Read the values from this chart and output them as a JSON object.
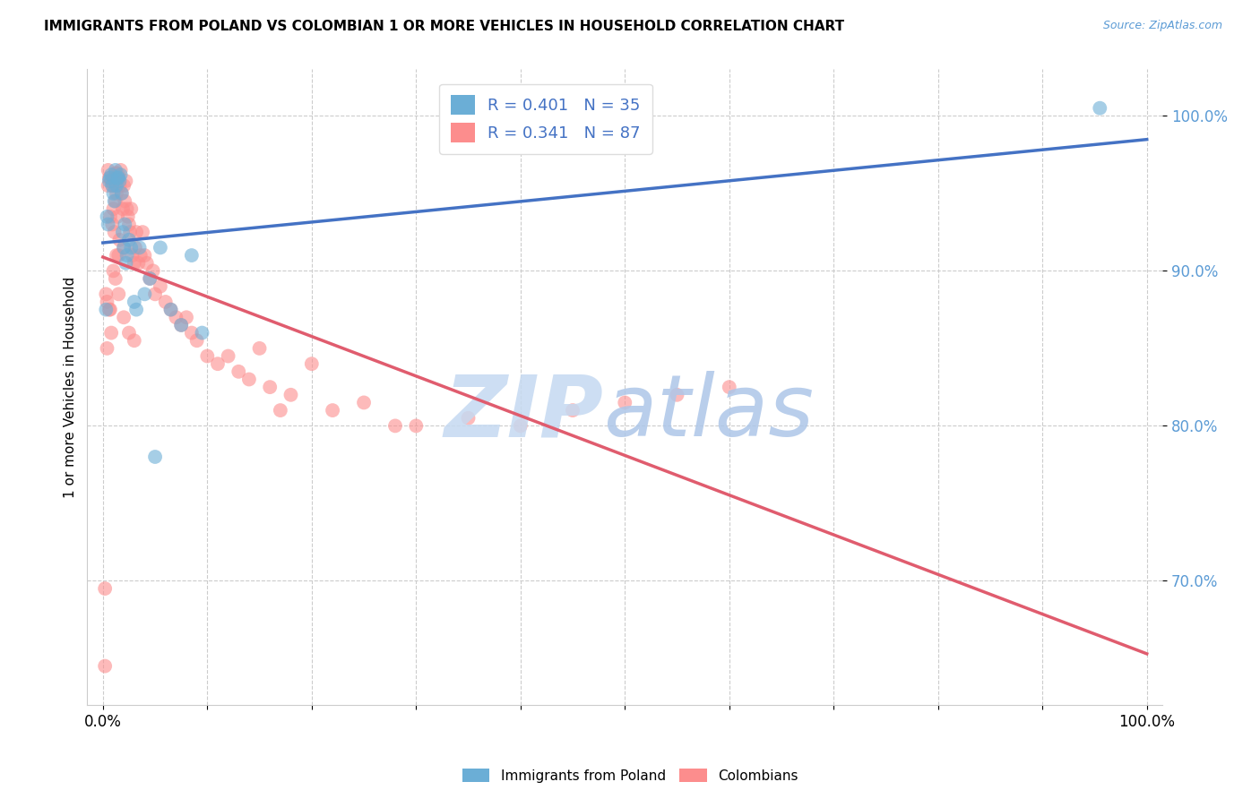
{
  "title": "IMMIGRANTS FROM POLAND VS COLOMBIAN 1 OR MORE VEHICLES IN HOUSEHOLD CORRELATION CHART",
  "source": "Source: ZipAtlas.com",
  "ylabel": "1 or more Vehicles in Household",
  "poland_R": 0.401,
  "poland_N": 35,
  "colombia_R": 0.341,
  "colombia_N": 87,
  "poland_color": "#6baed6",
  "colombia_color": "#fc8d8d",
  "poland_line_color": "#4472c4",
  "colombia_line_color": "#e05c6e",
  "legend_label_poland": "Immigrants from Poland",
  "legend_label_colombia": "Colombians",
  "poland_x": [
    0.3,
    0.4,
    0.5,
    0.6,
    0.7,
    0.8,
    0.9,
    1.0,
    1.1,
    1.2,
    1.3,
    1.4,
    1.5,
    1.6,
    1.7,
    1.8,
    1.9,
    2.0,
    2.1,
    2.2,
    2.3,
    2.5,
    2.7,
    3.0,
    3.2,
    3.5,
    4.0,
    4.5,
    5.0,
    5.5,
    6.5,
    7.5,
    8.5,
    9.5,
    95.5
  ],
  "poland_y": [
    87.5,
    93.5,
    93.0,
    95.8,
    96.0,
    96.2,
    95.5,
    95.0,
    94.5,
    96.5,
    95.5,
    96.0,
    96.0,
    95.8,
    96.2,
    95.0,
    92.5,
    91.5,
    93.0,
    90.5,
    91.0,
    92.0,
    91.5,
    88.0,
    87.5,
    91.5,
    88.5,
    89.5,
    78.0,
    91.5,
    87.5,
    86.5,
    91.0,
    86.0,
    100.5
  ],
  "colombia_x": [
    0.2,
    0.3,
    0.4,
    0.5,
    0.5,
    0.6,
    0.7,
    0.7,
    0.8,
    0.8,
    0.9,
    0.9,
    1.0,
    1.0,
    1.1,
    1.1,
    1.2,
    1.2,
    1.3,
    1.3,
    1.4,
    1.4,
    1.5,
    1.5,
    1.6,
    1.6,
    1.7,
    1.8,
    1.9,
    2.0,
    2.0,
    2.1,
    2.2,
    2.3,
    2.4,
    2.5,
    2.6,
    2.7,
    2.8,
    3.0,
    3.1,
    3.2,
    3.4,
    3.6,
    3.8,
    4.0,
    4.2,
    4.5,
    4.8,
    5.0,
    5.5,
    6.0,
    6.5,
    7.0,
    7.5,
    8.0,
    8.5,
    9.0,
    10.0,
    11.0,
    12.0,
    13.0,
    14.0,
    15.0,
    16.0,
    17.0,
    18.0,
    20.0,
    22.0,
    25.0,
    28.0,
    30.0,
    35.0,
    40.0,
    45.0,
    50.0,
    55.0,
    60.0,
    0.4,
    0.6,
    1.0,
    1.2,
    1.5,
    2.0,
    2.5,
    3.0,
    0.2
  ],
  "colombia_y": [
    64.5,
    88.5,
    85.0,
    96.5,
    95.5,
    96.0,
    87.5,
    93.5,
    86.0,
    95.8,
    95.5,
    93.0,
    96.0,
    94.0,
    95.5,
    92.5,
    94.5,
    96.3,
    95.0,
    91.0,
    96.3,
    93.5,
    96.0,
    91.0,
    95.5,
    92.0,
    96.5,
    95.0,
    94.0,
    95.5,
    91.5,
    94.5,
    95.8,
    94.0,
    93.5,
    93.0,
    92.5,
    94.0,
    91.0,
    90.5,
    91.5,
    92.5,
    90.5,
    91.0,
    92.5,
    91.0,
    90.5,
    89.5,
    90.0,
    88.5,
    89.0,
    88.0,
    87.5,
    87.0,
    86.5,
    87.0,
    86.0,
    85.5,
    84.5,
    84.0,
    84.5,
    83.5,
    83.0,
    85.0,
    82.5,
    81.0,
    82.0,
    84.0,
    81.0,
    81.5,
    80.0,
    80.0,
    80.5,
    80.0,
    81.0,
    81.5,
    82.0,
    82.5,
    88.0,
    87.5,
    90.0,
    89.5,
    88.5,
    87.0,
    86.0,
    85.5,
    69.5
  ]
}
